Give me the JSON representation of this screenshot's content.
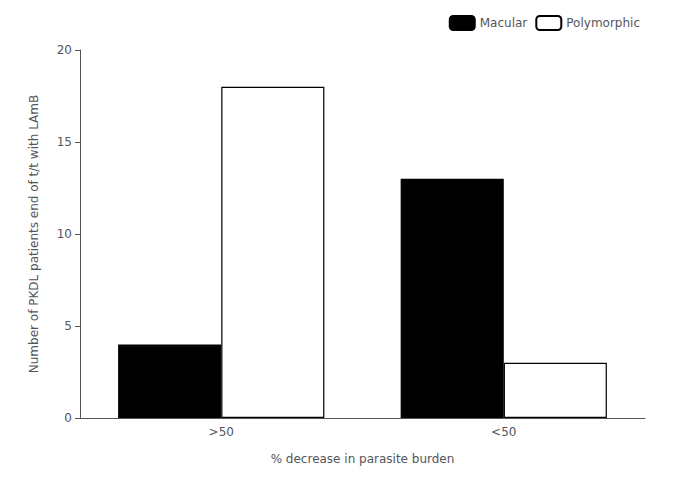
{
  "chart_data": {
    "type": "bar",
    "categories": [
      ">50",
      "<50"
    ],
    "series": [
      {
        "name": "Macular",
        "color": "#000000",
        "values": [
          4,
          13
        ]
      },
      {
        "name": "Polymorphic",
        "color": "#ffffff",
        "values": [
          18,
          3
        ]
      }
    ],
    "xlabel": "% decrease in parasite burden",
    "ylabel": "Number of PKDL patients end of t/t with LAmB",
    "ylim": [
      0,
      20
    ],
    "yticks": [
      0,
      5,
      10,
      15,
      20
    ],
    "grid": false,
    "legend": "upper right"
  }
}
